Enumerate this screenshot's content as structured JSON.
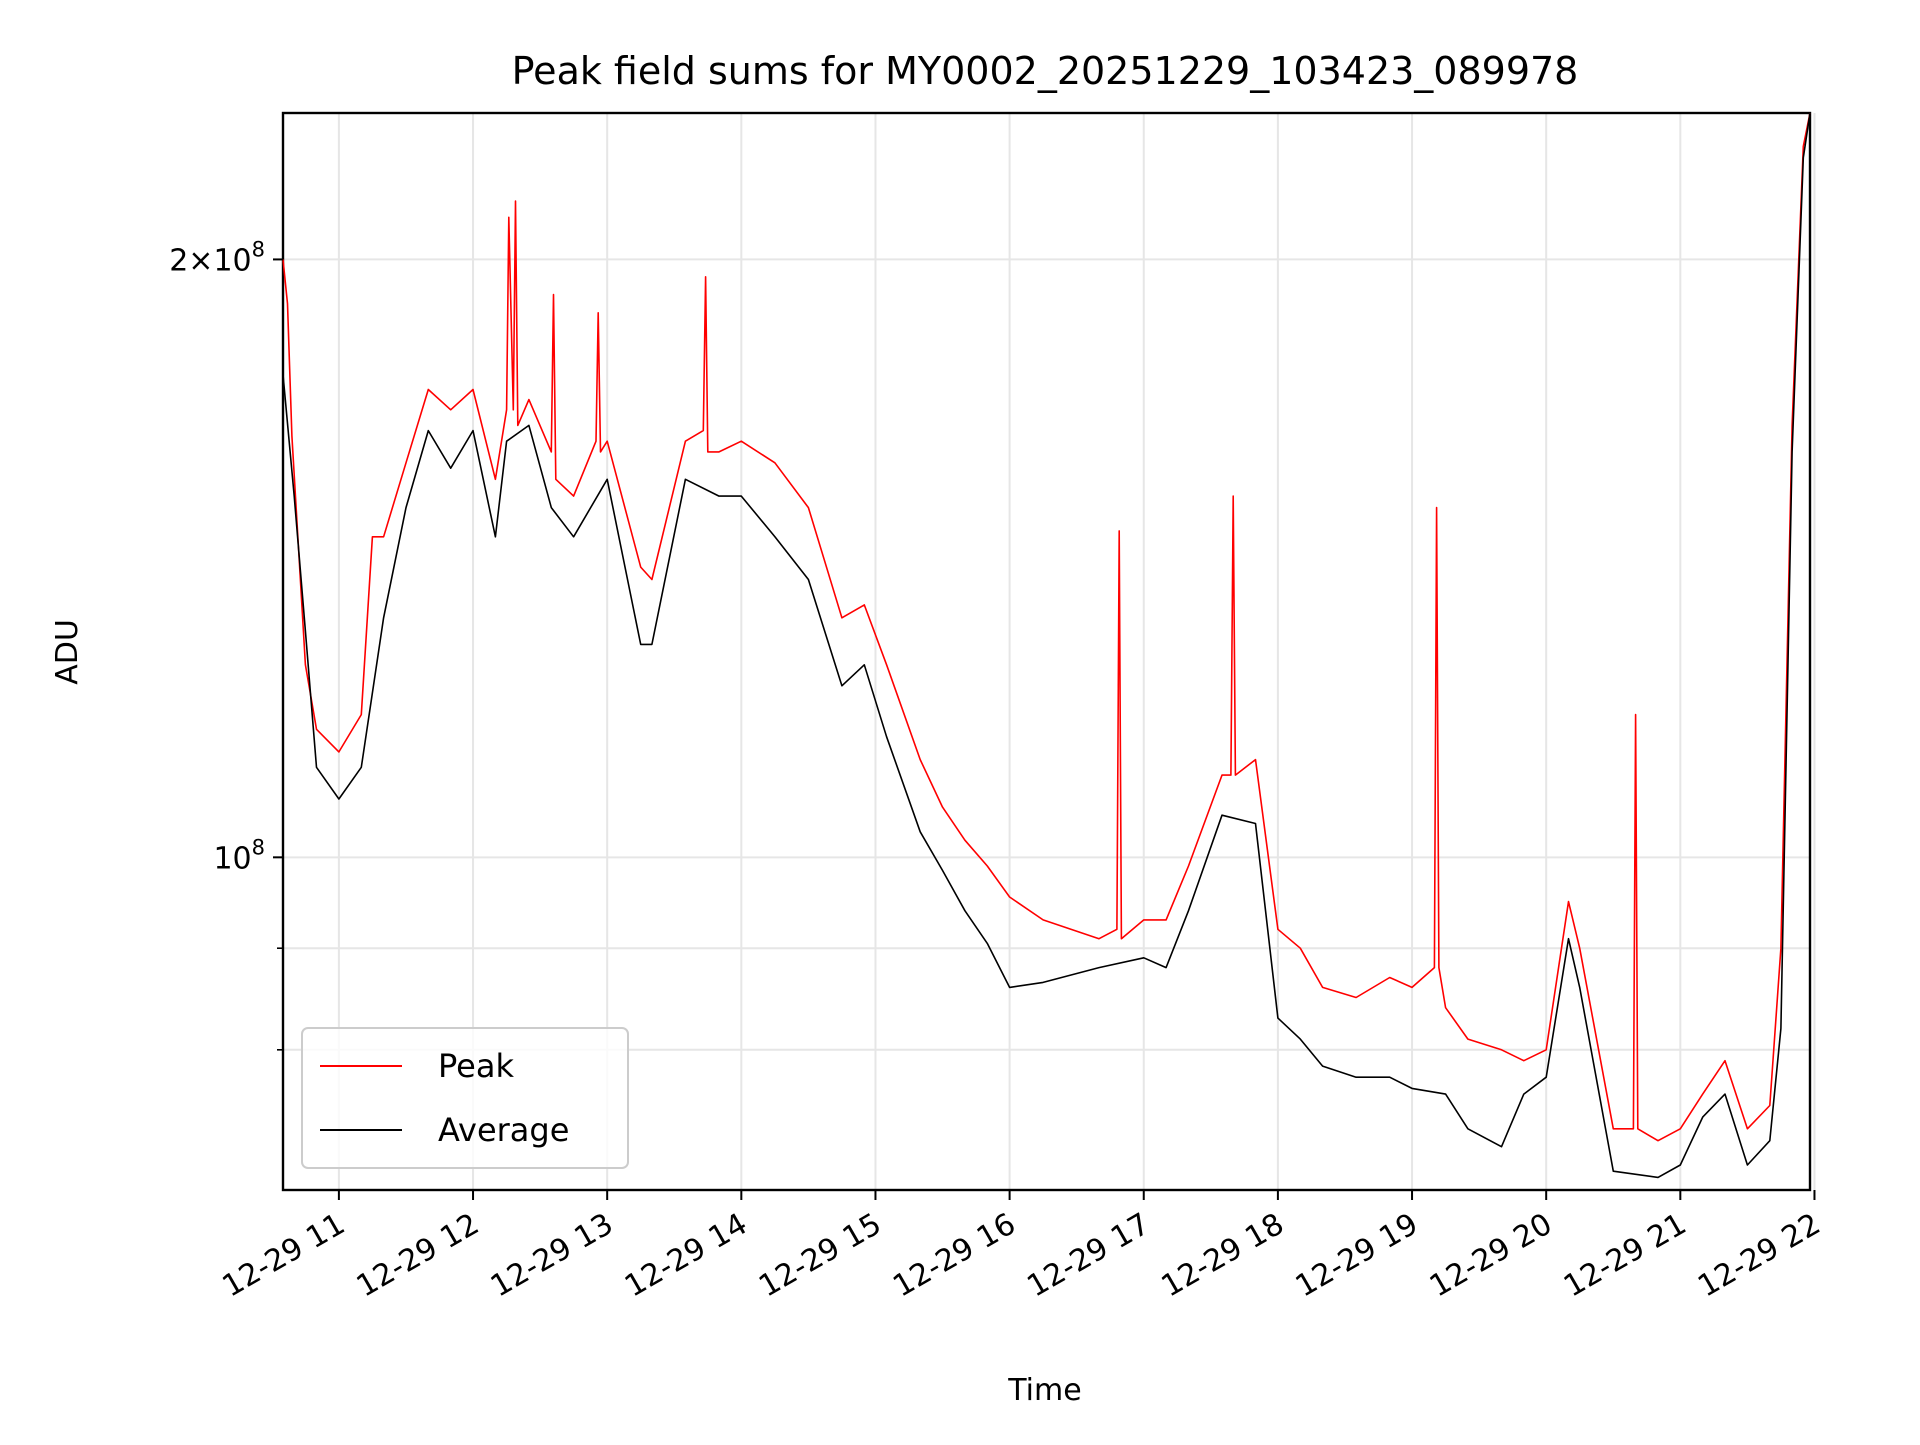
{
  "chart_data": {
    "type": "line",
    "title": "Peak field sums for MY0002_20251229_103423_089978",
    "xlabel": "Time",
    "ylabel": "ADU",
    "yscale": "log",
    "grid": true,
    "legend_position": "lower-left",
    "x_range": [
      "2025-12-29 10:35",
      "2025-12-29 21:58"
    ],
    "ylim": [
      68000000,
      237000000
    ],
    "x_ticks": [
      "2025-12-29 11:00",
      "2025-12-29 12:00",
      "2025-12-29 13:00",
      "2025-12-29 14:00",
      "2025-12-29 15:00",
      "2025-12-29 16:00",
      "2025-12-29 17:00",
      "2025-12-29 18:00",
      "2025-12-29 19:00",
      "2025-12-29 20:00",
      "2025-12-29 21:00",
      "2025-12-29 22:00"
    ],
    "x_tick_labels": [
      "12-29 11",
      "12-29 12",
      "12-29 13",
      "12-29 14",
      "12-29 15",
      "12-29 16",
      "12-29 17",
      "12-29 18",
      "12-29 19",
      "12-29 20",
      "12-29 21",
      "12-29 22"
    ],
    "y_major_ticks": [
      100000000,
      200000000
    ],
    "y_tick_labels": [
      "10^8",
      "2×10^8"
    ],
    "y_minor_ticks": [
      80000000,
      90000000
    ],
    "series": [
      {
        "name": "Average",
        "color": "#000000",
        "x": [
          "2025-12-29 10:35",
          "2025-12-29 10:40",
          "2025-12-29 10:45",
          "2025-12-29 10:50",
          "2025-12-29 11:00",
          "2025-12-29 11:10",
          "2025-12-29 11:20",
          "2025-12-29 11:30",
          "2025-12-29 11:40",
          "2025-12-29 11:50",
          "2025-12-29 12:00",
          "2025-12-29 12:10",
          "2025-12-29 12:15",
          "2025-12-29 12:25",
          "2025-12-29 12:35",
          "2025-12-29 12:45",
          "2025-12-29 13:00",
          "2025-12-29 13:15",
          "2025-12-29 13:20",
          "2025-12-29 13:35",
          "2025-12-29 13:50",
          "2025-12-29 14:00",
          "2025-12-29 14:15",
          "2025-12-29 14:30",
          "2025-12-29 14:45",
          "2025-12-29 14:55",
          "2025-12-29 15:05",
          "2025-12-29 15:20",
          "2025-12-29 15:30",
          "2025-12-29 15:40",
          "2025-12-29 15:50",
          "2025-12-29 16:00",
          "2025-12-29 16:15",
          "2025-12-29 16:40",
          "2025-12-29 17:00",
          "2025-12-29 17:10",
          "2025-12-29 17:20",
          "2025-12-29 17:35",
          "2025-12-29 17:50",
          "2025-12-29 18:00",
          "2025-12-29 18:10",
          "2025-12-29 18:20",
          "2025-12-29 18:35",
          "2025-12-29 18:50",
          "2025-12-29 19:00",
          "2025-12-29 19:15",
          "2025-12-29 19:25",
          "2025-12-29 19:40",
          "2025-12-29 19:50",
          "2025-12-29 20:00",
          "2025-12-29 20:10",
          "2025-12-29 20:15",
          "2025-12-29 20:30",
          "2025-12-29 20:50",
          "2025-12-29 21:00",
          "2025-12-29 21:10",
          "2025-12-29 21:20",
          "2025-12-29 21:30",
          "2025-12-29 21:40",
          "2025-12-29 21:45",
          "2025-12-29 21:50",
          "2025-12-29 21:55",
          "2025-12-29 21:58"
        ],
        "values": [
          175000000,
          152000000,
          130000000,
          111000000,
          107000000,
          111000000,
          132000000,
          150000000,
          164000000,
          157000000,
          164000000,
          145000000,
          162000000,
          165000000,
          150000000,
          145000000,
          155000000,
          128000000,
          128000000,
          155000000,
          152000000,
          152000000,
          145000000,
          138000000,
          122000000,
          125000000,
          115000000,
          103000000,
          98500000,
          94000000,
          90500000,
          86000000,
          86500000,
          88000000,
          89000000,
          88000000,
          94000000,
          105000000,
          104000000,
          83000000,
          81000000,
          78500000,
          77500000,
          77500000,
          76500000,
          76000000,
          73000000,
          71500000,
          76000000,
          77500000,
          91000000,
          86000000,
          69500000,
          69000000,
          70000000,
          74000000,
          76000000,
          70000000,
          72000000,
          82000000,
          160000000,
          225000000,
          237000000
        ]
      },
      {
        "name": "Peak",
        "color": "#ff0000",
        "x": [
          "2025-12-29 10:35",
          "2025-12-29 10:37",
          "2025-12-29 10:39",
          "2025-12-29 10:45",
          "2025-12-29 10:50",
          "2025-12-29 11:00",
          "2025-12-29 11:10",
          "2025-12-29 11:15",
          "2025-12-29 11:20",
          "2025-12-29 11:30",
          "2025-12-29 11:40",
          "2025-12-29 11:50",
          "2025-12-29 12:00",
          "2025-12-29 12:10",
          "2025-12-29 12:15",
          "2025-12-29 12:16",
          "2025-12-29 12:18",
          "2025-12-29 12:19",
          "2025-12-29 12:20",
          "2025-12-29 12:25",
          "2025-12-29 12:35",
          "2025-12-29 12:36",
          "2025-12-29 12:37",
          "2025-12-29 12:45",
          "2025-12-29 12:55",
          "2025-12-29 12:56",
          "2025-12-29 12:57",
          "2025-12-29 13:00",
          "2025-12-29 13:15",
          "2025-12-29 13:20",
          "2025-12-29 13:35",
          "2025-12-29 13:43",
          "2025-12-29 13:44",
          "2025-12-29 13:45",
          "2025-12-29 13:50",
          "2025-12-29 14:00",
          "2025-12-29 14:15",
          "2025-12-29 14:30",
          "2025-12-29 14:45",
          "2025-12-29 14:55",
          "2025-12-29 15:05",
          "2025-12-29 15:20",
          "2025-12-29 15:30",
          "2025-12-29 15:40",
          "2025-12-29 15:50",
          "2025-12-29 16:00",
          "2025-12-29 16:15",
          "2025-12-29 16:40",
          "2025-12-29 16:48",
          "2025-12-29 16:49",
          "2025-12-29 16:50",
          "2025-12-29 17:00",
          "2025-12-29 17:10",
          "2025-12-29 17:20",
          "2025-12-29 17:35",
          "2025-12-29 17:39",
          "2025-12-29 17:40",
          "2025-12-29 17:41",
          "2025-12-29 17:50",
          "2025-12-29 18:00",
          "2025-12-29 18:10",
          "2025-12-29 18:20",
          "2025-12-29 18:35",
          "2025-12-29 18:50",
          "2025-12-29 19:00",
          "2025-12-29 19:10",
          "2025-12-29 19:11",
          "2025-12-29 19:12",
          "2025-12-29 19:15",
          "2025-12-29 19:25",
          "2025-12-29 19:40",
          "2025-12-29 19:50",
          "2025-12-29 20:00",
          "2025-12-29 20:10",
          "2025-12-29 20:15",
          "2025-12-29 20:30",
          "2025-12-29 20:39",
          "2025-12-29 20:40",
          "2025-12-29 20:41",
          "2025-12-29 20:50",
          "2025-12-29 21:00",
          "2025-12-29 21:10",
          "2025-12-29 21:20",
          "2025-12-29 21:30",
          "2025-12-29 21:40",
          "2025-12-29 21:45",
          "2025-12-29 21:50",
          "2025-12-29 21:55",
          "2025-12-29 21:58"
        ],
        "values": [
          200000000,
          190000000,
          163000000,
          125000000,
          116000000,
          113000000,
          118000000,
          145000000,
          145000000,
          158000000,
          172000000,
          168000000,
          172000000,
          155000000,
          168000000,
          210000000,
          168000000,
          214000000,
          165000000,
          170000000,
          160000000,
          192000000,
          155000000,
          152000000,
          162000000,
          188000000,
          160000000,
          162000000,
          140000000,
          138000000,
          162000000,
          164000000,
          196000000,
          160000000,
          160000000,
          162000000,
          158000000,
          150000000,
          132000000,
          134000000,
          125000000,
          112000000,
          106000000,
          102000000,
          99000000,
          95500000,
          93000000,
          91000000,
          92000000,
          146000000,
          91000000,
          93000000,
          93000000,
          99000000,
          110000000,
          110000000,
          152000000,
          110000000,
          112000000,
          92000000,
          90000000,
          86000000,
          85000000,
          87000000,
          86000000,
          88000000,
          150000000,
          88000000,
          84000000,
          81000000,
          80000000,
          79000000,
          80000000,
          95000000,
          90000000,
          73000000,
          73000000,
          118000000,
          73000000,
          72000000,
          73000000,
          76000000,
          79000000,
          73000000,
          75000000,
          90000000,
          165000000,
          228000000,
          237000000
        ]
      }
    ]
  }
}
